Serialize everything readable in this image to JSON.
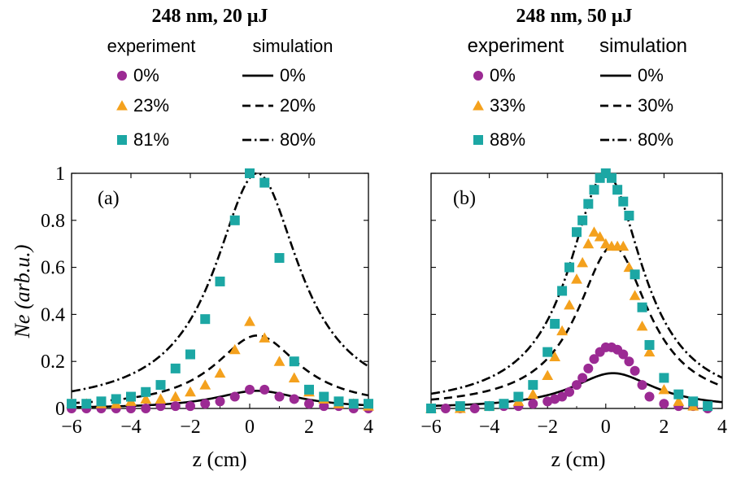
{
  "colors": {
    "purple": "#9b2a93",
    "orange": "#f4a11d",
    "teal": "#1ca7a4",
    "line": "#000000"
  },
  "chart_data": [
    {
      "type": "line",
      "title": "248 nm, 20 μJ",
      "panel_label": "(a)",
      "xlabel": "z (cm)",
      "ylabel": "Ne (arb.u.)",
      "xlim": [
        -6,
        4
      ],
      "ylim": [
        0,
        1
      ],
      "xticks": [
        "−6",
        "−4",
        "−2",
        "0",
        "2",
        "4"
      ],
      "yticks": [
        "0",
        "0.2",
        "0.4",
        "0.6",
        "0.8",
        "1"
      ],
      "legend": {
        "experiment_header": "experiment",
        "simulation_header": "simulation",
        "experiment": [
          "0%",
          "23%",
          "81%"
        ],
        "simulation": [
          "0%",
          "20%",
          "80%"
        ]
      },
      "experiment_series": [
        {
          "name": "0%",
          "marker": "circle",
          "color": "purple",
          "x": [
            -6,
            -5.5,
            -5,
            -4.5,
            -4,
            -3.5,
            -3,
            -2.5,
            -2,
            -1.5,
            -1,
            -0.5,
            0,
            0.5,
            1,
            1.5,
            2,
            2.5,
            3,
            3.5,
            4
          ],
          "y": [
            0.0,
            0.0,
            0.0,
            0.0,
            0.0,
            0.0,
            0.01,
            0.01,
            0.01,
            0.02,
            0.03,
            0.05,
            0.08,
            0.08,
            0.05,
            0.04,
            0.02,
            0.01,
            0.01,
            0.0,
            0.0
          ]
        },
        {
          "name": "23%",
          "marker": "triangle",
          "color": "orange",
          "x": [
            -6,
            -5.5,
            -5,
            -4.5,
            -4,
            -3.5,
            -3,
            -2.5,
            -2,
            -1.5,
            -1,
            -0.5,
            0,
            0.5,
            1,
            1.5,
            2,
            2.5,
            3,
            3.5,
            4
          ],
          "y": [
            0.02,
            0.02,
            0.02,
            0.02,
            0.03,
            0.04,
            0.04,
            0.05,
            0.07,
            0.1,
            0.15,
            0.25,
            0.37,
            0.3,
            0.2,
            0.13,
            0.07,
            0.04,
            0.02,
            0.02,
            0.01
          ]
        },
        {
          "name": "81%",
          "marker": "square",
          "color": "teal",
          "x": [
            -6,
            -5.5,
            -5,
            -4.5,
            -4,
            -3.5,
            -3,
            -2.5,
            -2,
            -1.5,
            -1,
            -0.5,
            0,
            0.5,
            1,
            1.5,
            2,
            2.5,
            3,
            3.5,
            4
          ],
          "y": [
            0.02,
            0.02,
            0.03,
            0.04,
            0.05,
            0.07,
            0.1,
            0.17,
            0.23,
            0.38,
            0.54,
            0.8,
            1.0,
            0.96,
            0.64,
            0.2,
            0.08,
            0.05,
            0.03,
            0.02,
            0.02
          ]
        }
      ],
      "simulation_series": [
        {
          "name": "0%",
          "style": "solid",
          "amplitude": 0.075,
          "center": 0.25,
          "width": 1.75
        },
        {
          "name": "20%",
          "style": "dashed",
          "amplitude": 0.31,
          "center": 0.25,
          "width": 1.75
        },
        {
          "name": "80%",
          "style": "dashdot",
          "amplitude": 1.0,
          "center": 0.25,
          "width": 1.75
        }
      ]
    },
    {
      "type": "line",
      "title": "248 nm, 50 μJ",
      "panel_label": "(b)",
      "xlabel": "z (cm)",
      "ylabel": "",
      "xlim": [
        -6,
        4
      ],
      "ylim": [
        0,
        1
      ],
      "xticks": [
        "−6",
        "−4",
        "−2",
        "0",
        "2",
        "4"
      ],
      "yticks": [],
      "legend": {
        "experiment_header": "experiment",
        "simulation_header": "simulation",
        "experiment": [
          "0%",
          "33%",
          "88%"
        ],
        "simulation": [
          "0%",
          "30%",
          "80%"
        ]
      },
      "experiment_series": [
        {
          "name": "0%",
          "marker": "circle",
          "color": "purple",
          "x": [
            -6,
            -5.5,
            -5,
            -4.5,
            -4,
            -3.5,
            -3,
            -2.5,
            -2,
            -1.75,
            -1.5,
            -1.25,
            -1,
            -0.8,
            -0.6,
            -0.4,
            -0.2,
            0,
            0.2,
            0.4,
            0.6,
            0.8,
            1,
            1.25,
            1.5,
            2,
            2.5,
            3,
            3.5
          ],
          "y": [
            0.0,
            0.0,
            0.0,
            0.0,
            0.01,
            0.01,
            0.01,
            0.02,
            0.03,
            0.04,
            0.05,
            0.07,
            0.1,
            0.13,
            0.17,
            0.21,
            0.24,
            0.26,
            0.26,
            0.25,
            0.23,
            0.2,
            0.16,
            0.1,
            0.05,
            0.02,
            0.01,
            0.01,
            0.0
          ]
        },
        {
          "name": "33%",
          "marker": "triangle",
          "color": "orange",
          "x": [
            -6,
            -5,
            -4,
            -3,
            -2.5,
            -2,
            -1.75,
            -1.5,
            -1.25,
            -1,
            -0.8,
            -0.6,
            -0.4,
            -0.2,
            0,
            0.2,
            0.4,
            0.6,
            0.8,
            1,
            1.25,
            1.5,
            2,
            2.5,
            3
          ],
          "y": [
            0.0,
            0.0,
            0.01,
            0.03,
            0.06,
            0.14,
            0.22,
            0.33,
            0.44,
            0.55,
            0.62,
            0.7,
            0.75,
            0.73,
            0.7,
            0.69,
            0.69,
            0.69,
            0.6,
            0.48,
            0.35,
            0.24,
            0.08,
            0.03,
            0.01
          ]
        },
        {
          "name": "88%",
          "marker": "square",
          "color": "teal",
          "x": [
            -6,
            -5,
            -4,
            -3.5,
            -3,
            -2.5,
            -2,
            -1.75,
            -1.5,
            -1.25,
            -1,
            -0.8,
            -0.6,
            -0.4,
            -0.2,
            0,
            0.2,
            0.4,
            0.6,
            0.8,
            1,
            1.25,
            1.5,
            2,
            2.5,
            3,
            3.5
          ],
          "y": [
            0.0,
            0.01,
            0.01,
            0.02,
            0.05,
            0.1,
            0.24,
            0.36,
            0.5,
            0.6,
            0.75,
            0.8,
            0.87,
            0.93,
            0.98,
            1.0,
            0.98,
            0.93,
            0.88,
            0.82,
            0.57,
            0.43,
            0.27,
            0.13,
            0.06,
            0.03,
            0.01
          ]
        }
      ],
      "simulation_series": [
        {
          "name": "0%",
          "style": "solid",
          "amplitude": 0.15,
          "center": 0.25,
          "width": 1.75
        },
        {
          "name": "30%",
          "style": "dashed",
          "amplitude": 0.69,
          "center": 0.25,
          "width": 1.5
        },
        {
          "name": "80%",
          "style": "dashdot",
          "amplitude": 1.0,
          "center": 0.0,
          "width": 1.55
        }
      ]
    }
  ]
}
